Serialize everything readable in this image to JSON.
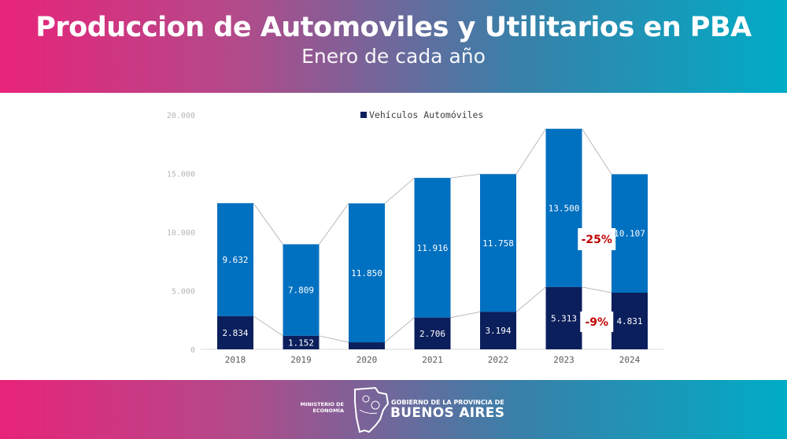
{
  "header": {
    "title": "Produccion de Automoviles y Utilitarios en PBA",
    "subtitle": "Enero de cada año"
  },
  "footer": {
    "ministry": "MINISTERIO DE ECONOMÍA",
    "gov_line": "GOBIERNO DE LA PROVINCIA DE",
    "province": "BUENOS AIRES"
  },
  "chart_data": {
    "type": "bar",
    "stacked": true,
    "categories": [
      "2018",
      "2019",
      "2020",
      "2021",
      "2022",
      "2023",
      "2024"
    ],
    "series": [
      {
        "name": "Vehículos Automóviles",
        "values": [
          2834,
          1152,
          600,
          2706,
          3194,
          5313,
          4831
        ],
        "labels": [
          "2.834",
          "1.152",
          "",
          "2.706",
          "3.194",
          "5.313",
          "4.831"
        ],
        "color": "#0b1f5c"
      },
      {
        "values": [
          9632,
          7809,
          11850,
          11916,
          11758,
          13500,
          10107
        ],
        "labels": [
          "9.632",
          "7.809",
          "11.850",
          "11.916",
          "11.758",
          "13.500",
          "10.107"
        ],
        "color": "#0070c0"
      }
    ],
    "ylim": [
      0,
      20000
    ],
    "yticks": [
      {
        "v": 0,
        "label": "0"
      },
      {
        "v": 5000,
        "label": "5.000"
      },
      {
        "v": 10000,
        "label": "10.000"
      },
      {
        "v": 15000,
        "label": "15.000"
      },
      {
        "v": 20000,
        "label": "20.000"
      }
    ],
    "legend": {
      "position": "top",
      "entries": [
        "Vehículos Automóviles"
      ]
    },
    "grid": false,
    "annotations": [
      {
        "text": "-25%",
        "between": [
          "2023",
          "2024"
        ],
        "series": "total",
        "color": "#c00000"
      },
      {
        "text": "-9%",
        "between": [
          "2023",
          "2024"
        ],
        "series": "Vehículos Automóviles",
        "color": "#c00000"
      }
    ]
  }
}
